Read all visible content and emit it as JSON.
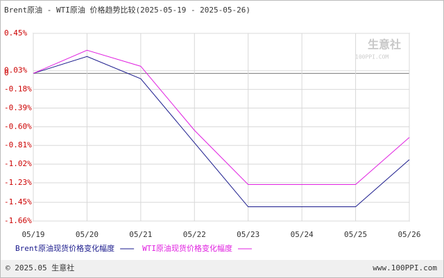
{
  "chart_data": {
    "type": "line",
    "title": "Brent原油 - WTI原油 价格趋势比较(2025-05-19 - 2025-05-26)",
    "categories": [
      "05/19",
      "05/20",
      "05/21",
      "05/22",
      "05/23",
      "05/24",
      "05/25",
      "05/26"
    ],
    "series": [
      {
        "name": "Brent原油现货价格变化幅度",
        "color": "#1a1a8c",
        "values": [
          0.0,
          0.19,
          -0.06,
          -0.78,
          -1.5,
          -1.5,
          -1.5,
          -0.97
        ]
      },
      {
        "name": "WTI原油现货价格变化幅度",
        "color": "#e020e0",
        "values": [
          0.0,
          0.26,
          0.08,
          -0.64,
          -1.25,
          -1.25,
          -1.25,
          -0.72
        ]
      }
    ],
    "ylim": [
      -1.66,
      0.45
    ],
    "yticks": [
      {
        "value": 0.45,
        "label": "0.45%"
      },
      0,
      {
        "value": 0.03,
        "label": "0.03%"
      },
      {
        "value": -0.18,
        "label": "-0.18%"
      },
      {
        "value": -0.39,
        "label": "-0.39%"
      },
      {
        "value": -0.6,
        "label": "-0.60%"
      },
      {
        "value": -0.81,
        "label": "-0.81%"
      },
      {
        "value": -1.02,
        "label": "-1.02%"
      },
      {
        "value": -1.23,
        "label": "-1.23%"
      },
      {
        "value": -1.45,
        "label": "-1.45%"
      },
      {
        "value": -1.66,
        "label": "-1.66%"
      }
    ],
    "grid": true,
    "watermark": "生意社",
    "watermark_url": "100PPI.COM",
    "footer_left": "© 2025.05 生意社",
    "footer_right": "www.100PPI.com"
  }
}
